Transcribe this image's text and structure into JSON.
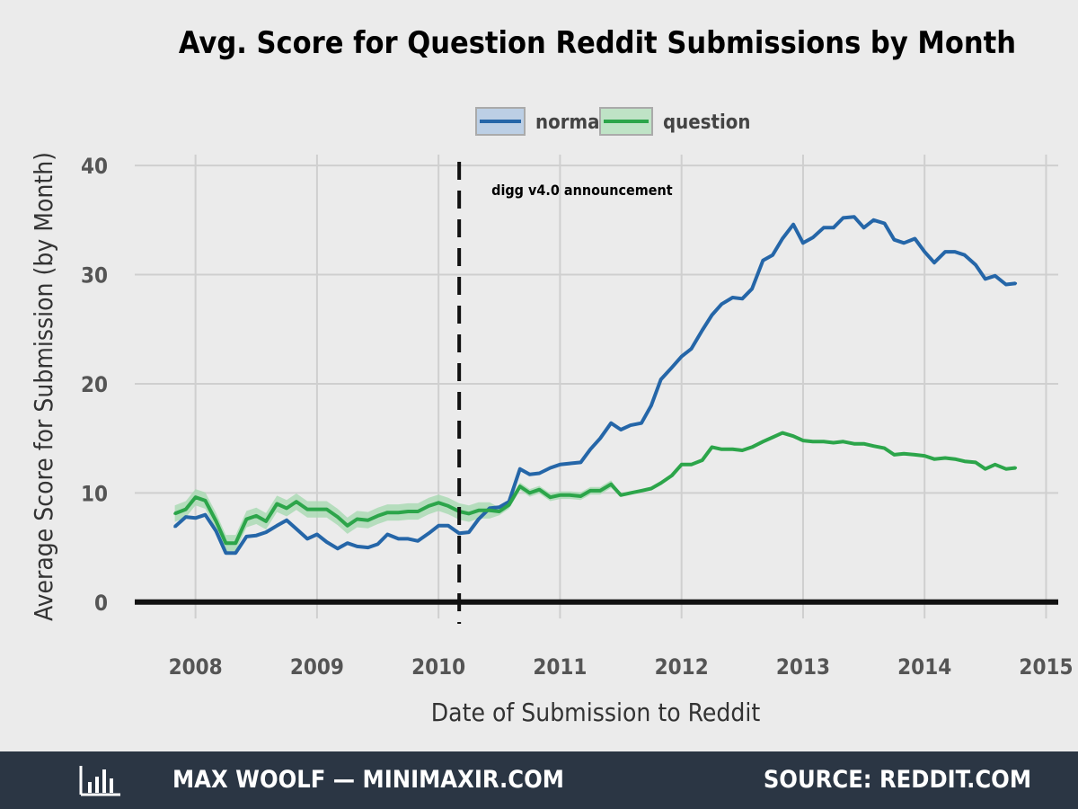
{
  "chart_data": {
    "type": "line",
    "title": "Avg. Score for Question Reddit Submissions by Month",
    "xlabel": "Date of Submission to Reddit",
    "ylabel": "Average Score for Submission (by Month)",
    "xlim": [
      2007.5,
      2015.1
    ],
    "ylim": [
      -1.5,
      41
    ],
    "x_ticks": [
      2008,
      2009,
      2010,
      2011,
      2012,
      2013,
      2014,
      2015
    ],
    "y_ticks": [
      0,
      10,
      20,
      30,
      40
    ],
    "grid": true,
    "legend_position": "top",
    "annotation": {
      "x": 2010.17,
      "label": "digg v4.0 announcement",
      "style": "dashed-vertical-line"
    },
    "x": [
      2007.83,
      2007.92,
      2008.0,
      2008.08,
      2008.17,
      2008.25,
      2008.33,
      2008.42,
      2008.5,
      2008.58,
      2008.67,
      2008.75,
      2008.83,
      2008.92,
      2009.0,
      2009.08,
      2009.17,
      2009.25,
      2009.33,
      2009.42,
      2009.5,
      2009.58,
      2009.67,
      2009.75,
      2009.83,
      2009.92,
      2010.0,
      2010.08,
      2010.17,
      2010.25,
      2010.33,
      2010.42,
      2010.5,
      2010.58,
      2010.67,
      2010.75,
      2010.83,
      2010.92,
      2011.0,
      2011.08,
      2011.17,
      2011.25,
      2011.33,
      2011.42,
      2011.5,
      2011.58,
      2011.67,
      2011.75,
      2011.83,
      2011.92,
      2012.0,
      2012.08,
      2012.17,
      2012.25,
      2012.33,
      2012.42,
      2012.5,
      2012.58,
      2012.67,
      2012.75,
      2012.83,
      2012.92,
      2013.0,
      2013.08,
      2013.17,
      2013.25,
      2013.33,
      2013.42,
      2013.5,
      2013.58,
      2013.67,
      2013.75,
      2013.83,
      2013.92,
      2014.0,
      2014.08,
      2014.17,
      2014.25,
      2014.33,
      2014.42,
      2014.5,
      2014.58,
      2014.67,
      2014.75
    ],
    "series": [
      {
        "name": "normal",
        "color": "#2566a8",
        "values": [
          6.9,
          7.8,
          7.7,
          8.0,
          6.5,
          4.5,
          4.5,
          6.0,
          6.1,
          6.4,
          7.0,
          7.5,
          6.7,
          5.8,
          6.2,
          5.5,
          4.9,
          5.4,
          5.1,
          5.0,
          5.3,
          6.2,
          5.8,
          5.8,
          5.6,
          6.3,
          7.0,
          7.0,
          6.3,
          6.4,
          7.6,
          8.6,
          8.7,
          9.2,
          12.2,
          11.7,
          11.8,
          12.3,
          12.6,
          12.7,
          12.8,
          14.0,
          15.0,
          16.4,
          15.8,
          16.2,
          16.4,
          18.0,
          20.4,
          21.5,
          22.5,
          23.2,
          24.9,
          26.3,
          27.3,
          27.9,
          27.8,
          28.7,
          31.3,
          31.8,
          33.3,
          34.6,
          32.9,
          33.4,
          34.3,
          34.3,
          35.2,
          35.3,
          34.3,
          35.0,
          34.7,
          33.2,
          32.9,
          33.3,
          32.1,
          31.1,
          32.1,
          32.1,
          31.8,
          30.9,
          29.6,
          29.9,
          29.1,
          29.2
        ]
      },
      {
        "name": "question",
        "color": "#2ca54a",
        "band_color": "#a8d9b2",
        "values": [
          8.1,
          8.5,
          9.6,
          9.3,
          7.4,
          5.4,
          5.4,
          7.6,
          7.9,
          7.4,
          9.0,
          8.6,
          9.2,
          8.5,
          8.5,
          8.5,
          7.8,
          7.0,
          7.6,
          7.5,
          7.9,
          8.2,
          8.2,
          8.3,
          8.3,
          8.8,
          9.1,
          8.8,
          8.3,
          8.1,
          8.4,
          8.4,
          8.3,
          8.9,
          10.6,
          10.0,
          10.3,
          9.6,
          9.8,
          9.8,
          9.7,
          10.2,
          10.2,
          10.8,
          9.8,
          10.0,
          10.2,
          10.4,
          10.9,
          11.6,
          12.6,
          12.6,
          13.0,
          14.2,
          14.0,
          14.0,
          13.9,
          14.2,
          14.7,
          15.1,
          15.5,
          15.2,
          14.8,
          14.7,
          14.7,
          14.6,
          14.7,
          14.5,
          14.5,
          14.3,
          14.1,
          13.5,
          13.6,
          13.5,
          13.4,
          13.1,
          13.2,
          13.1,
          12.9,
          12.8,
          12.2,
          12.6,
          12.2,
          12.3
        ]
      }
    ]
  },
  "footer": {
    "logo_icon": "bar-chart-icon",
    "credit": "MAX WOOLF — MINIMAXIR.COM",
    "source": "SOURCE: REDDIT.COM"
  }
}
